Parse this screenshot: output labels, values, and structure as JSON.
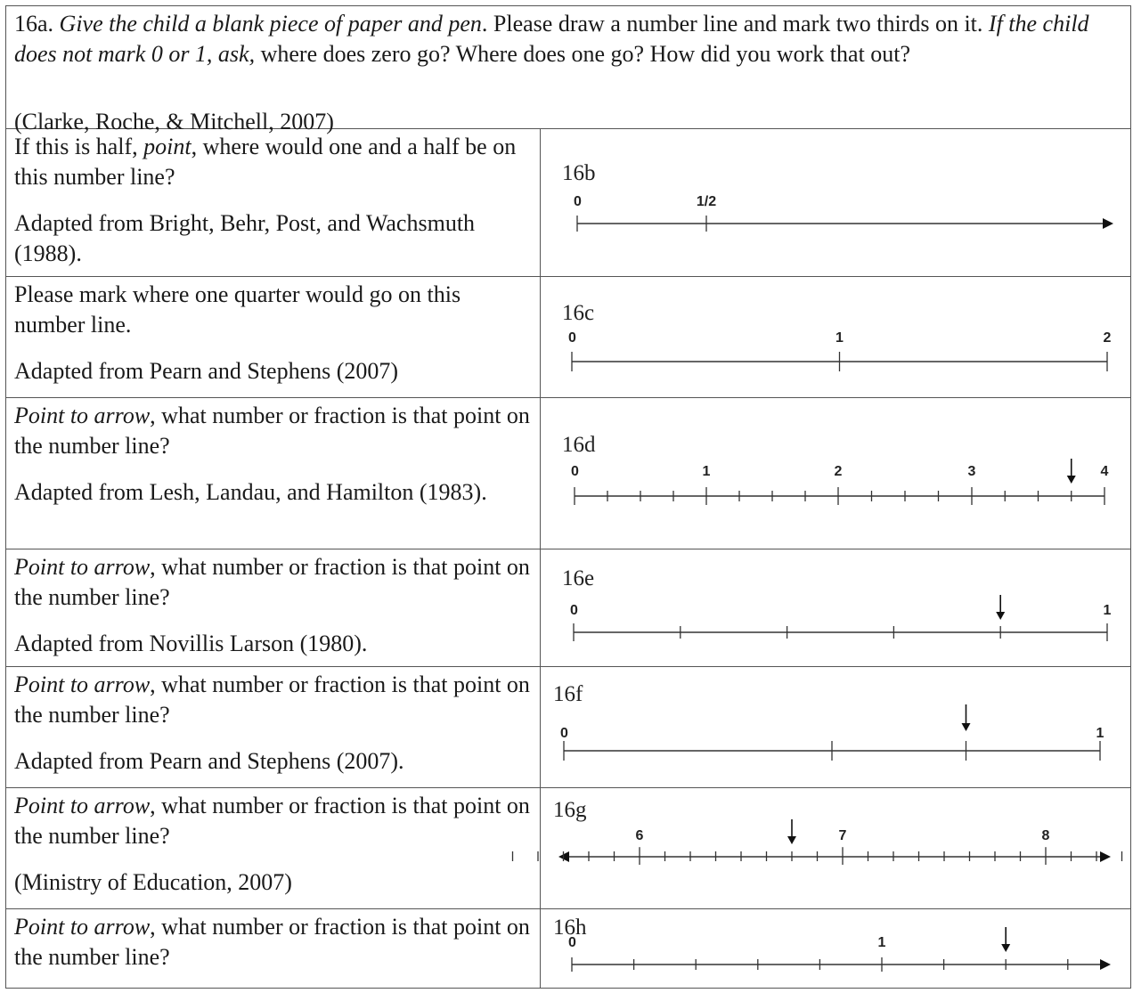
{
  "intro": {
    "number": "16a.",
    "italic_1": "Give the child a blank piece of paper and pen",
    "plain_1": ". Please draw a number line and mark two thirds on it.",
    "italic_2": "If the child does not mark 0 or 1, ask,",
    "plain_2": " where does zero go? Where does one go? How did you work that out?",
    "source": "(Clarke, Roche, & Mitchell, 2007)"
  },
  "rows": [
    {
      "id": "16b",
      "q_pre": "If this is half, ",
      "q_italic": "point",
      "q_post": ", where would one and a half be on this number line?",
      "source": "Adapted from Bright, Behr, Post, and Wachsmuth (1988).",
      "line": {
        "start": 0,
        "end": null,
        "arrow_right": true,
        "arrow_left": false,
        "ticks": [
          0,
          0.5
        ],
        "labels": [
          {
            "v": 0,
            "t": "0"
          },
          {
            "v": 0.5,
            "t": "1/2"
          }
        ],
        "pointer": null
      }
    },
    {
      "id": "16c",
      "q_pre": "Please mark where one quarter would go on this number line.",
      "q_italic": "",
      "q_post": "",
      "source": "Adapted from Pearn and Stephens (2007)",
      "line": {
        "start": 0,
        "end": 2,
        "arrow_right": false,
        "arrow_left": false,
        "ticks": [
          0,
          1,
          2
        ],
        "labels": [
          {
            "v": 0,
            "t": "0"
          },
          {
            "v": 1,
            "t": "1"
          },
          {
            "v": 2,
            "t": "2"
          }
        ],
        "pointer": null
      }
    },
    {
      "id": "16d",
      "q_pre": "",
      "q_italic": "Point to arrow",
      "q_post": ", what number or fraction is that point on the number line?",
      "source": "Adapted from Lesh, Landau, and Hamilton (1983).",
      "line": {
        "start": 0,
        "end": 4,
        "arrow_right": false,
        "arrow_left": false,
        "tick_step": 0.25,
        "labels": [
          {
            "v": 0,
            "t": "0"
          },
          {
            "v": 1,
            "t": "1"
          },
          {
            "v": 2,
            "t": "2"
          },
          {
            "v": 3,
            "t": "3"
          },
          {
            "v": 4,
            "t": "4"
          }
        ],
        "pointer": 3.75
      }
    },
    {
      "id": "16e",
      "q_pre": "",
      "q_italic": "Point to arrow",
      "q_post": ", what number or fraction is that point on the number line?",
      "source": "Adapted from Novillis Larson (1980).",
      "line": {
        "start": 0,
        "end": 1,
        "arrow_right": false,
        "arrow_left": false,
        "tick_step": 0.2,
        "labels": [
          {
            "v": 0,
            "t": "0"
          },
          {
            "v": 1,
            "t": "1"
          }
        ],
        "pointer": 0.8
      }
    },
    {
      "id": "16f",
      "q_pre": "",
      "q_italic": "Point to arrow",
      "q_post": ", what number or fraction is that point on the number line?",
      "source": "Adapted from Pearn and Stephens (2007).",
      "line": {
        "start": 0,
        "end": 1,
        "arrow_right": false,
        "arrow_left": false,
        "ticks": [
          0,
          0.5,
          0.75,
          1
        ],
        "labels": [
          {
            "v": 0,
            "t": "0"
          },
          {
            "v": 1,
            "t": "1"
          }
        ],
        "pointer": 0.75
      }
    },
    {
      "id": "16g",
      "q_pre": "",
      "q_italic": "Point to arrow",
      "q_post": ", what number or fraction is that point on the number line?",
      "source": "(Ministry of Education, 2007)",
      "line": {
        "start": 5.25,
        "end": 8.75,
        "arrow_right": true,
        "arrow_left": true,
        "tick_step": 0.125,
        "tick_start": 5.375,
        "tick_end": 8.625,
        "major": [
          6,
          7,
          8
        ],
        "labels": [
          {
            "v": 6,
            "t": "6"
          },
          {
            "v": 7,
            "t": "7"
          },
          {
            "v": 8,
            "t": "8"
          }
        ],
        "pointer": 6.75
      }
    },
    {
      "id": "16h",
      "q_pre": "",
      "q_italic": "Point to arrow",
      "q_post": ", what number or fraction is that point on the number line?",
      "source": "",
      "line": {
        "start": 0,
        "end": null,
        "arrow_right": true,
        "arrow_left": false,
        "tick_step": 0.2,
        "tick_end": 1.6,
        "labels": [
          {
            "v": 0,
            "t": "0"
          },
          {
            "v": 1,
            "t": "1"
          }
        ],
        "pointer": 1.4
      }
    }
  ]
}
